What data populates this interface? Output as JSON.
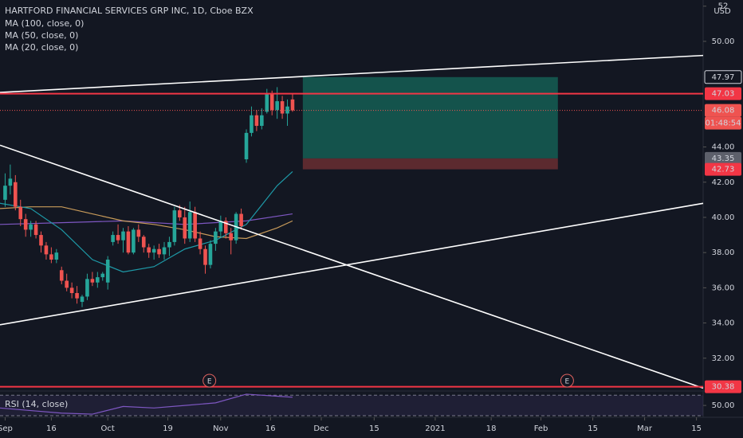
{
  "chart_data": {
    "type": "candlestick",
    "title": "HARTFORD FINANCIAL SERVICES GRP INC, 1D, Cboe BZX",
    "currency": "USD",
    "x": [
      1,
      2,
      3,
      4,
      5,
      6,
      7,
      8,
      9,
      10,
      11,
      12,
      13,
      14,
      15,
      16,
      17,
      18,
      19,
      20,
      21,
      22,
      23,
      24,
      25,
      26,
      27,
      28,
      29,
      30,
      31,
      32,
      33,
      34,
      35,
      36,
      37,
      38,
      39,
      40,
      41,
      42,
      43,
      44,
      45,
      46,
      47,
      48,
      49,
      50,
      51,
      52,
      53,
      54,
      55,
      56,
      57
    ],
    "open": [
      41.0,
      41.8,
      42.0,
      40.6,
      39.9,
      39.3,
      39.6,
      39.0,
      38.4,
      37.9,
      37.6,
      37.0,
      36.4,
      36.0,
      35.7,
      35.2,
      35.5,
      36.5,
      36.3,
      36.6,
      36.3,
      38.6,
      39.0,
      38.7,
      39.2,
      38.0,
      39.3,
      38.9,
      38.3,
      38.0,
      38.2,
      37.9,
      38.3,
      38.6,
      40.4,
      40.0,
      38.8,
      40.3,
      38.8,
      38.2,
      37.3,
      38.5,
      39.2,
      39.8,
      39.1,
      38.7,
      40.2,
      43.3,
      44.8,
      45.8,
      45.2,
      46.0,
      47.0,
      46.1,
      46.6,
      45.9,
      46.7
    ],
    "high": [
      42.5,
      43.0,
      42.4,
      41.0,
      40.2,
      39.8,
      39.8,
      39.2,
      38.6,
      38.3,
      38.2,
      37.2,
      36.8,
      36.3,
      36.1,
      35.6,
      36.8,
      36.9,
      36.9,
      36.9,
      37.8,
      39.2,
      39.6,
      39.4,
      39.5,
      39.4,
      39.6,
      39.0,
      38.5,
      38.4,
      38.5,
      38.6,
      38.9,
      40.6,
      40.7,
      40.6,
      40.9,
      40.6,
      39.2,
      38.4,
      38.7,
      39.4,
      40.1,
      40.0,
      39.4,
      40.3,
      40.5,
      45.0,
      46.3,
      46.1,
      46.2,
      47.3,
      47.2,
      47.4,
      46.9,
      46.7,
      47.0
    ],
    "low": [
      40.6,
      41.3,
      40.4,
      39.5,
      38.9,
      38.9,
      38.8,
      38.0,
      37.6,
      37.4,
      37.4,
      36.2,
      35.8,
      35.4,
      35.1,
      34.9,
      35.3,
      36.1,
      36.0,
      36.4,
      35.9,
      38.4,
      38.5,
      38.0,
      37.9,
      37.9,
      38.6,
      38.0,
      37.7,
      37.6,
      37.7,
      37.6,
      37.8,
      38.4,
      39.8,
      38.5,
      38.6,
      38.6,
      37.9,
      36.8,
      37.1,
      38.1,
      38.9,
      38.8,
      37.9,
      38.5,
      39.3,
      43.1,
      44.6,
      44.9,
      45.0,
      45.9,
      45.8,
      45.6,
      45.6,
      45.2,
      46.0
    ],
    "close": [
      41.8,
      42.2,
      40.6,
      39.9,
      39.3,
      39.6,
      39.0,
      38.4,
      37.9,
      37.6,
      38.0,
      36.4,
      36.0,
      35.7,
      35.4,
      35.5,
      36.5,
      36.3,
      36.6,
      36.8,
      37.6,
      39.0,
      38.7,
      39.2,
      38.0,
      39.3,
      38.9,
      38.3,
      38.0,
      38.2,
      37.9,
      38.3,
      38.6,
      40.4,
      40.0,
      38.8,
      40.3,
      38.8,
      38.2,
      37.3,
      38.5,
      39.2,
      39.8,
      39.1,
      38.7,
      40.2,
      39.5,
      44.8,
      45.8,
      45.2,
      45.8,
      47.0,
      46.1,
      46.6,
      45.9,
      46.3,
      46.08
    ],
    "up_color": "#26a69a",
    "down_color": "#ef5350",
    "moving_averages": [
      {
        "name": "MA (100, close, 0)",
        "color": "#7e57c2",
        "x": [
          0,
          12,
          24,
          36,
          48,
          57
        ],
        "values": [
          39.6,
          39.7,
          39.8,
          39.6,
          39.8,
          40.2
        ]
      },
      {
        "name": "MA (50, close, 0)",
        "color": "#c89b5a",
        "x": [
          0,
          6,
          12,
          18,
          24,
          30,
          36,
          42,
          48,
          54,
          57
        ],
        "values": [
          40.5,
          40.6,
          40.6,
          40.2,
          39.8,
          39.6,
          39.3,
          38.9,
          38.8,
          39.4,
          39.8
        ]
      },
      {
        "name": "MA (20, close, 0)",
        "color": "#1e9aa8",
        "x": [
          0,
          6,
          12,
          18,
          24,
          30,
          36,
          42,
          48,
          54,
          57
        ],
        "values": [
          40.8,
          40.5,
          39.3,
          37.6,
          36.9,
          37.2,
          38.2,
          38.7,
          39.6,
          41.8,
          42.6
        ]
      }
    ],
    "xlim": [
      0,
      137
    ],
    "ylim": [
      30.18,
      52.35
    ],
    "xticks": [
      {
        "value": 1,
        "label": "Sep"
      },
      {
        "value": 10,
        "label": "16"
      },
      {
        "value": 21,
        "label": "Oct"
      },
      {
        "value": 32.7,
        "label": "19"
      },
      {
        "value": 43,
        "label": "Nov"
      },
      {
        "value": 52.7,
        "label": "16"
      },
      {
        "value": 62.6,
        "label": "Dec"
      },
      {
        "value": 72.9,
        "label": "15"
      },
      {
        "value": 84.8,
        "label": "2021"
      },
      {
        "value": 95.7,
        "label": "18"
      },
      {
        "value": 105.4,
        "label": "Feb"
      },
      {
        "value": 115.5,
        "label": "15"
      },
      {
        "value": 125.6,
        "label": "Mar"
      },
      {
        "value": 135.7,
        "label": "15"
      }
    ],
    "yticks": [
      {
        "value": 32,
        "label": "32.00"
      },
      {
        "value": 34,
        "label": "34.00"
      },
      {
        "value": 36,
        "label": "36.00"
      },
      {
        "value": 38,
        "label": "38.00"
      },
      {
        "value": 40,
        "label": "40.00"
      },
      {
        "value": 42,
        "label": "42.00"
      },
      {
        "value": 44,
        "label": "44.00"
      },
      {
        "value": 50,
        "label": "50.00"
      },
      52
    ],
    "trend_lines": [
      {
        "x": [
          0,
          137
        ],
        "y": [
          47.1,
          49.2
        ]
      },
      {
        "x": [
          0,
          137
        ],
        "y": [
          44.1,
          30.3
        ]
      },
      {
        "x": [
          0,
          137
        ],
        "y": [
          33.9,
          40.8
        ]
      }
    ],
    "horizontal_lines": [
      47.03,
      30.38
    ],
    "horizontal_line_color": "#f23645",
    "position": {
      "x": [
        59,
        108.7
      ],
      "target": 47.97,
      "entry": 43.35,
      "stop": 42.73
    },
    "last_price": 46.08,
    "countdown": "01:48:54",
    "earnings": [
      {
        "x": 40.8,
        "label": "E"
      },
      {
        "x": 110.5,
        "label": "E"
      }
    ],
    "rsi": {
      "name": "RSI (14, close)",
      "color": "#7e57c2",
      "x": [
        0,
        6,
        12,
        18,
        24,
        30,
        36,
        42,
        48,
        54,
        57
      ],
      "values": [
        45,
        40,
        35,
        33,
        48,
        45,
        50,
        55,
        72,
        68,
        66
      ],
      "ylim": [
        30,
        75
      ],
      "yticks": [
        {
          "value": 50,
          "label": "50.00"
        }
      ],
      "bands": [
        30,
        70
      ]
    }
  }
}
